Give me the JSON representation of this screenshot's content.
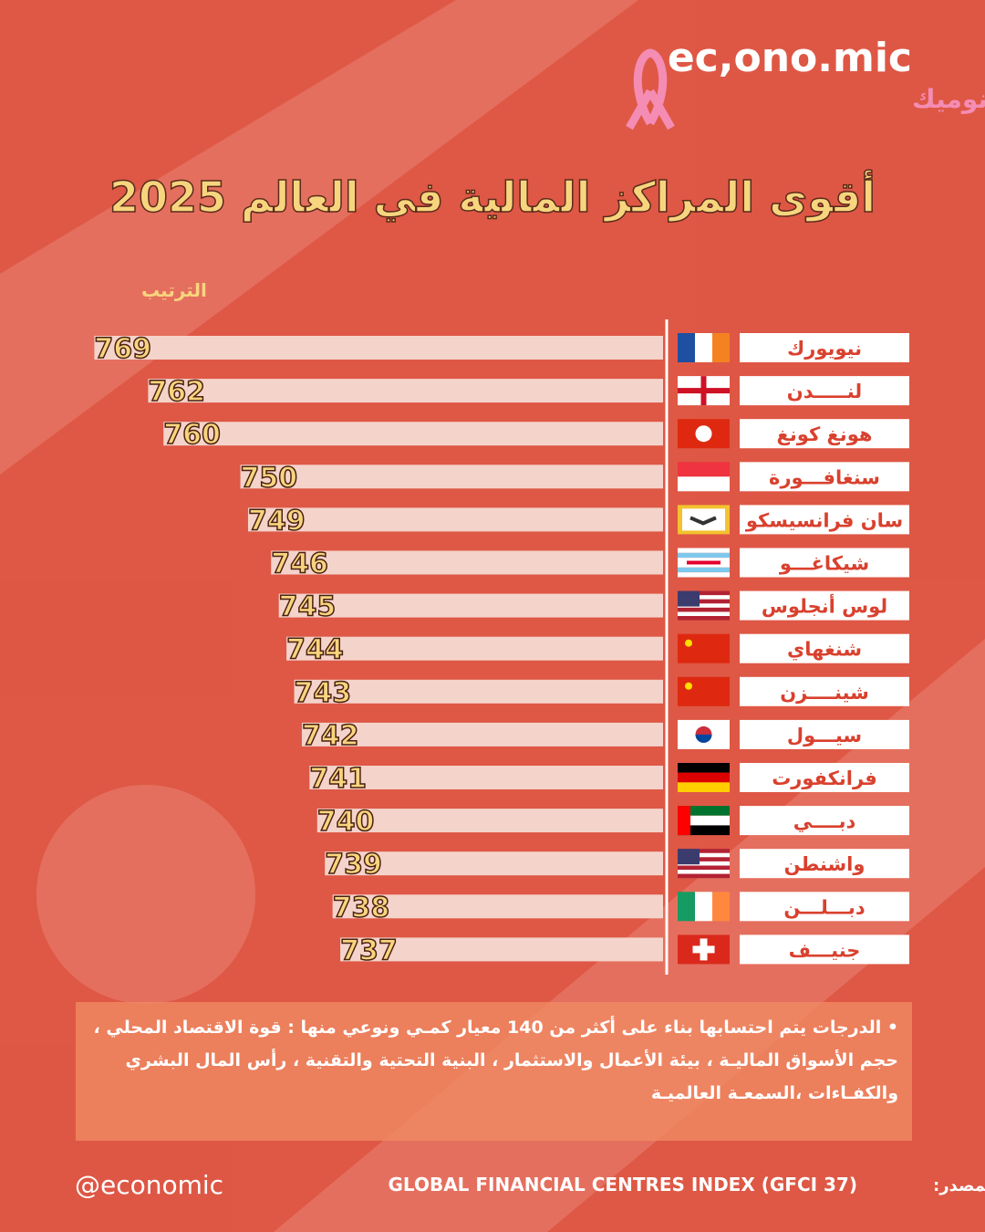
{
  "brand": {
    "latin": "ec,ono.mic",
    "arabic": "إيكونوميك"
  },
  "chart_data": {
    "type": "bar",
    "orientation": "horizontal",
    "title": "أقوى المراكز المالية في العالم 2025",
    "value_axis_label": "الترتيب",
    "categories": [
      "نيويورك",
      "لنـــــدن",
      "هونغ كونغ",
      "سنغافـــورة",
      "سان فرانسيسكو",
      "شيكاغـــو",
      "لوس أنجلوس",
      "شنغهاي",
      "شينــــزن",
      "سيـــول",
      "فرانكفورت",
      "دبــــي",
      "واشنطن",
      "دبـــلـــن",
      "جنيـــف"
    ],
    "values": [
      769,
      762,
      760,
      750,
      749,
      746,
      745,
      744,
      743,
      742,
      741,
      740,
      739,
      738,
      737
    ],
    "color": "#f4d3cb",
    "xlim": [
      695,
      770
    ]
  },
  "note": "• الدرجات يتم احتسابها بناء على أكثر من 140 معيار كمـي ونوعي منها : قوة الاقتصاد المحلي ، حجم الأسواق الماليـة ، بيئة الأعمال والاستثمار ، البنية التحتية والتقنية ، رأس المال البشري والكفـاءات ،السمعـة العالميـة",
  "footer": {
    "handle": "@economic",
    "source_label": "المصدر:",
    "source": "GLOBAL FINANCIAL CENTRES INDEX (GFCI 37)"
  }
}
